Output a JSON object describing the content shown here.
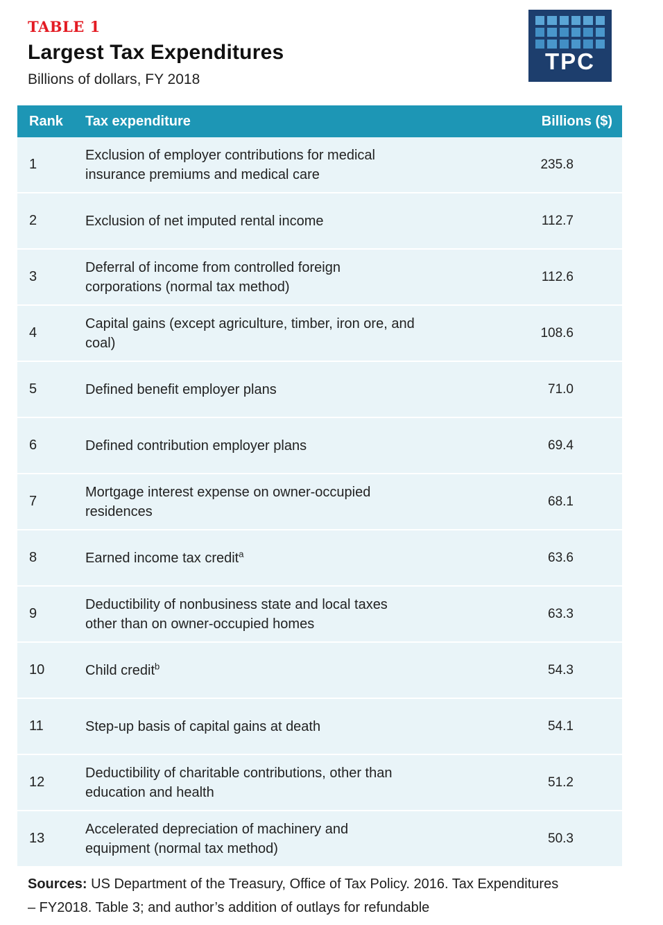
{
  "header": {
    "table_label": "TABLE 1",
    "title": "Largest Tax Expenditures",
    "subtitle": "Billions of dollars, FY 2018"
  },
  "logo": {
    "text": "TPC"
  },
  "table": {
    "col_rank": "Rank",
    "col_name": "Tax expenditure",
    "col_value": "Billions ($)",
    "rows": [
      {
        "rank": "1",
        "name": "Exclusion of employer contributions for medical insurance premiums and medical care",
        "sup": "",
        "value": "235.8"
      },
      {
        "rank": "2",
        "name": "Exclusion of net imputed rental income",
        "sup": "",
        "value": "112.7"
      },
      {
        "rank": "3",
        "name": "Deferral of income from controlled foreign corporations (normal tax method)",
        "sup": "",
        "value": "112.6"
      },
      {
        "rank": "4",
        "name": "Capital gains (except agriculture, timber, iron ore, and coal)",
        "sup": "",
        "value": "108.6"
      },
      {
        "rank": "5",
        "name": "Defined benefit employer plans",
        "sup": "",
        "value": "71.0"
      },
      {
        "rank": "6",
        "name": "Defined contribution employer plans",
        "sup": "",
        "value": "69.4"
      },
      {
        "rank": "7",
        "name": "Mortgage interest expense on owner-occupied residences",
        "sup": "",
        "value": "68.1"
      },
      {
        "rank": "8",
        "name": "Earned income tax credit",
        "sup": "a",
        "value": "63.6"
      },
      {
        "rank": "9",
        "name": "Deductibility of nonbusiness state and local taxes other than on owner-occupied homes",
        "sup": "",
        "value": "63.3"
      },
      {
        "rank": "10",
        "name": "Child credit",
        "sup": "b",
        "value": "54.3"
      },
      {
        "rank": "11",
        "name": "Step-up basis of capital gains at death",
        "sup": "",
        "value": "54.1"
      },
      {
        "rank": "12",
        "name": "Deductibility of charitable contributions, other than education and health",
        "sup": "",
        "value": "51.2"
      },
      {
        "rank": "13",
        "name": "Accelerated depreciation of machinery and equipment (normal tax method)",
        "sup": "",
        "value": "50.3"
      }
    ]
  },
  "footer": {
    "label": "Sources:",
    "text": " US Department of the Treasury, Office of Tax Policy. 2016. Tax Expenditures – FY2018. Table 3; and author’s addition of outlays for refundable"
  },
  "colors": {
    "header_teal": "#1d96b5",
    "row_light_blue": "#e9f4f8",
    "table_label_red": "#e31b23",
    "logo_navy": "#1d3e6d",
    "logo_pixel_blue": "#4a97cc",
    "text_dark": "#1e1e1e"
  },
  "chart_data": {
    "type": "table",
    "title": "Largest Tax Expenditures",
    "subtitle": "Billions of dollars, FY 2018",
    "columns": [
      "Rank",
      "Tax expenditure",
      "Billions ($)"
    ],
    "rows": [
      [
        1,
        "Exclusion of employer contributions for medical insurance premiums and medical care",
        235.8
      ],
      [
        2,
        "Exclusion of net imputed rental income",
        112.7
      ],
      [
        3,
        "Deferral of income from controlled foreign corporations (normal tax method)",
        112.6
      ],
      [
        4,
        "Capital gains (except agriculture, timber, iron ore, and coal)",
        108.6
      ],
      [
        5,
        "Defined benefit employer plans",
        71.0
      ],
      [
        6,
        "Defined contribution employer plans",
        69.4
      ],
      [
        7,
        "Mortgage interest expense on owner-occupied residences",
        68.1
      ],
      [
        8,
        "Earned income tax credit",
        63.6
      ],
      [
        9,
        "Deductibility of nonbusiness state and local taxes other than on owner-occupied homes",
        63.3
      ],
      [
        10,
        "Child credit",
        54.3
      ],
      [
        11,
        "Step-up basis of capital gains at death",
        54.1
      ],
      [
        12,
        "Deductibility of charitable contributions, other than education and health",
        51.2
      ],
      [
        13,
        "Accelerated depreciation of machinery and equipment (normal tax method)",
        50.3
      ]
    ],
    "footnote_markers": {
      "8": "a",
      "10": "b"
    },
    "notes": "Sources: US Department of the Treasury, Office of Tax Policy. 2016. Tax Expenditures – FY2018. Table 3; and author’s addition of outlays for refundable"
  }
}
